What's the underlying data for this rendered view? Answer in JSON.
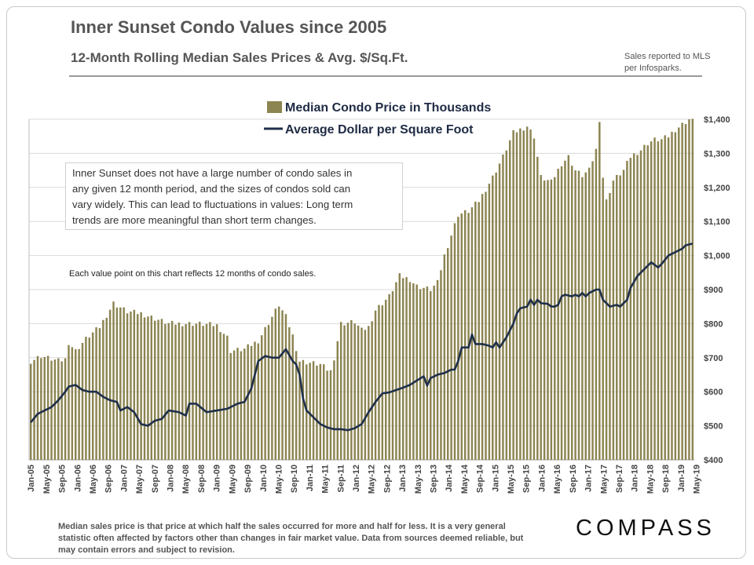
{
  "title": "Inner Sunset Condo Values since 2005",
  "subtitle": "12-Month Rolling Median Sales Prices & Avg. $/Sq.Ft.",
  "source_line1": "Sales reported to MLS",
  "source_line2": "per Infosparks.",
  "note_box": [
    "Inner Sunset does not have a large number of condo sales in",
    "any given 12 month period, and the sizes of condos sold can",
    "vary widely. This can lead to fluctuations in values: Long term",
    "trends are more meaningful than short term changes."
  ],
  "point_note": "Each value point on this chart reflects 12 months of condo sales.",
  "footnote": "Median sales price is that price at which half the sales occurred for more and half for less. It is a very general statistic often affected by factors other than changes in fair market value. Data from sources deemed reliable, but may contain errors and subject to revision.",
  "logo": "COMPASS",
  "colors": {
    "bar": "#8c8451",
    "line": "#1f2f4a",
    "grid": "#d9d9d9"
  },
  "chart_data": {
    "type": "bar",
    "x_start": "Jan-05",
    "x_end": "May-19",
    "x_tick_labels": [
      "Jan-05",
      "May-05",
      "Sep-05",
      "Jan-06",
      "May-06",
      "Sep-06",
      "Jan-07",
      "May-07",
      "Sep-07",
      "Jan-08",
      "May-08",
      "Sep-08",
      "Jan-09",
      "May-09",
      "Sep-09",
      "Jan-10",
      "May-10",
      "Sep-10",
      "Jan-11",
      "May-11",
      "Sep-11",
      "Jan-12",
      "May-12",
      "Sep-12",
      "Jan-13",
      "May-13",
      "Sep-13",
      "Jan-14",
      "May-14",
      "Sep-14",
      "Jan-15",
      "May-15",
      "Sep-15",
      "Jan-16",
      "May-16",
      "Sep-16",
      "Jan-17",
      "May-17",
      "Sep-17",
      "Jan-18",
      "May-18",
      "Sep-18",
      "Jan-19",
      "May-19"
    ],
    "y_ticks": [
      "$400",
      "$500",
      "$600",
      "$700",
      "$800",
      "$900",
      "$1,000",
      "$1,100",
      "$1,200",
      "$1,300",
      "$1,400"
    ],
    "ylim": [
      400,
      1400
    ],
    "y_axis_side": "right",
    "grid": true,
    "legend_position": "top-center",
    "series": [
      {
        "name": "Median Condo Price in Thousands",
        "type": "bar",
        "keypoints": [
          [
            0,
            690
          ],
          [
            3,
            705
          ],
          [
            8,
            690
          ],
          [
            10,
            695
          ],
          [
            11,
            745
          ],
          [
            13,
            720
          ],
          [
            16,
            755
          ],
          [
            20,
            790
          ],
          [
            24,
            860
          ],
          [
            28,
            835
          ],
          [
            32,
            830
          ],
          [
            36,
            815
          ],
          [
            40,
            800
          ],
          [
            48,
            800
          ],
          [
            54,
            795
          ],
          [
            57,
            760
          ],
          [
            58,
            720
          ],
          [
            62,
            725
          ],
          [
            66,
            750
          ],
          [
            70,
            820
          ],
          [
            72,
            855
          ],
          [
            74,
            820
          ],
          [
            76,
            765
          ],
          [
            78,
            690
          ],
          [
            84,
            680
          ],
          [
            86,
            665
          ],
          [
            87,
            660
          ],
          [
            88,
            700
          ],
          [
            90,
            800
          ],
          [
            94,
            805
          ],
          [
            96,
            780
          ],
          [
            98,
            790
          ],
          [
            100,
            840
          ],
          [
            104,
            880
          ],
          [
            107,
            940
          ],
          [
            110,
            930
          ],
          [
            112,
            910
          ],
          [
            116,
            900
          ],
          [
            118,
            920
          ],
          [
            120,
            1000
          ],
          [
            122,
            1060
          ],
          [
            124,
            1120
          ],
          [
            127,
            1130
          ],
          [
            130,
            1160
          ],
          [
            134,
            1230
          ],
          [
            137,
            1290
          ],
          [
            140,
            1360
          ],
          [
            144,
            1380
          ],
          [
            146,
            1350
          ],
          [
            148,
            1230
          ],
          [
            151,
            1215
          ],
          [
            154,
            1270
          ],
          [
            156,
            1290
          ],
          [
            158,
            1250
          ],
          [
            160,
            1235
          ],
          [
            162,
            1250
          ],
          [
            164,
            1310
          ],
          [
            165,
            1400
          ],
          [
            166,
            1230
          ],
          [
            167,
            1160
          ],
          [
            169,
            1220
          ],
          [
            172,
            1250
          ],
          [
            174,
            1290
          ],
          [
            177,
            1310
          ],
          [
            179,
            1330
          ],
          [
            181,
            1340
          ],
          [
            183,
            1340
          ],
          [
            185,
            1350
          ],
          [
            187,
            1370
          ],
          [
            189,
            1385
          ],
          [
            191,
            1400
          ],
          [
            192,
            1395
          ]
        ]
      },
      {
        "name": "Average Dollar per Square Foot",
        "type": "line",
        "keypoints": [
          [
            0,
            510
          ],
          [
            2,
            535
          ],
          [
            4,
            545
          ],
          [
            6,
            555
          ],
          [
            8,
            575
          ],
          [
            10,
            600
          ],
          [
            11,
            615
          ],
          [
            13,
            620
          ],
          [
            15,
            605
          ],
          [
            17,
            600
          ],
          [
            19,
            600
          ],
          [
            21,
            585
          ],
          [
            23,
            575
          ],
          [
            25,
            570
          ],
          [
            26,
            545
          ],
          [
            28,
            555
          ],
          [
            30,
            540
          ],
          [
            32,
            505
          ],
          [
            34,
            500
          ],
          [
            36,
            515
          ],
          [
            38,
            520
          ],
          [
            40,
            545
          ],
          [
            43,
            540
          ],
          [
            45,
            530
          ],
          [
            46,
            565
          ],
          [
            48,
            565
          ],
          [
            51,
            540
          ],
          [
            54,
            545
          ],
          [
            57,
            550
          ],
          [
            60,
            565
          ],
          [
            62,
            570
          ],
          [
            64,
            610
          ],
          [
            66,
            690
          ],
          [
            68,
            705
          ],
          [
            70,
            700
          ],
          [
            72,
            700
          ],
          [
            74,
            725
          ],
          [
            76,
            690
          ],
          [
            77,
            680
          ],
          [
            78,
            650
          ],
          [
            79,
            580
          ],
          [
            80,
            545
          ],
          [
            82,
            525
          ],
          [
            84,
            505
          ],
          [
            86,
            495
          ],
          [
            88,
            490
          ],
          [
            90,
            490
          ],
          [
            92,
            487
          ],
          [
            94,
            493
          ],
          [
            96,
            505
          ],
          [
            98,
            540
          ],
          [
            100,
            570
          ],
          [
            102,
            595
          ],
          [
            104,
            598
          ],
          [
            106,
            605
          ],
          [
            108,
            612
          ],
          [
            110,
            620
          ],
          [
            112,
            633
          ],
          [
            114,
            645
          ],
          [
            115,
            618
          ],
          [
            116,
            640
          ],
          [
            118,
            650
          ],
          [
            120,
            655
          ],
          [
            122,
            665
          ],
          [
            123,
            665
          ],
          [
            124,
            690
          ],
          [
            125,
            730
          ],
          [
            127,
            730
          ],
          [
            128,
            768
          ],
          [
            129,
            740
          ],
          [
            131,
            740
          ],
          [
            133,
            735
          ],
          [
            134,
            730
          ],
          [
            135,
            745
          ],
          [
            136,
            730
          ],
          [
            137,
            745
          ],
          [
            138,
            760
          ],
          [
            140,
            800
          ],
          [
            141,
            830
          ],
          [
            142,
            845
          ],
          [
            144,
            850
          ],
          [
            145,
            870
          ],
          [
            146,
            855
          ],
          [
            147,
            870
          ],
          [
            148,
            860
          ],
          [
            150,
            858
          ],
          [
            151,
            850
          ],
          [
            152,
            850
          ],
          [
            153,
            855
          ],
          [
            154,
            880
          ],
          [
            155,
            885
          ],
          [
            157,
            880
          ],
          [
            158,
            885
          ],
          [
            159,
            880
          ],
          [
            160,
            890
          ],
          [
            161,
            880
          ],
          [
            162,
            890
          ],
          [
            164,
            900
          ],
          [
            165,
            900
          ],
          [
            166,
            870
          ],
          [
            167,
            860
          ],
          [
            168,
            850
          ],
          [
            170,
            855
          ],
          [
            171,
            850
          ],
          [
            173,
            870
          ],
          [
            174,
            905
          ],
          [
            176,
            940
          ],
          [
            178,
            960
          ],
          [
            179,
            970
          ],
          [
            180,
            980
          ],
          [
            182,
            965
          ],
          [
            183,
            975
          ],
          [
            185,
            1000
          ],
          [
            187,
            1010
          ],
          [
            189,
            1020
          ],
          [
            190,
            1030
          ],
          [
            192,
            1035
          ],
          [
            193,
            1045
          ]
        ]
      }
    ]
  }
}
